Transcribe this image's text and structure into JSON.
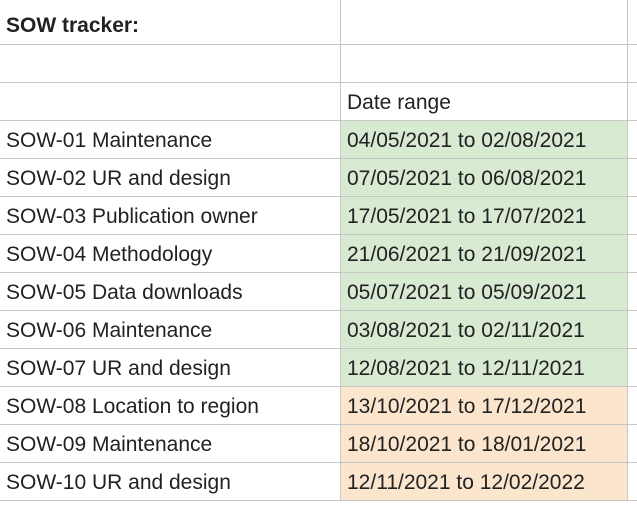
{
  "sheet": {
    "title": "SOW tracker:",
    "header": {
      "col_a": "",
      "col_b": "Date range"
    },
    "rows": [
      {
        "name": "SOW-01 Maintenance",
        "range": "04/05/2021 to 02/08/2021",
        "status_color": "#d9ead3"
      },
      {
        "name": "SOW-02 UR and design",
        "range": "07/05/2021 to 06/08/2021",
        "status_color": "#d9ead3"
      },
      {
        "name": "SOW-03 Publication owner",
        "range": "17/05/2021 to 17/07/2021",
        "status_color": "#d9ead3"
      },
      {
        "name": "SOW-04 Methodology",
        "range": "21/06/2021 to 21/09/2021",
        "status_color": "#d9ead3"
      },
      {
        "name": "SOW-05 Data downloads",
        "range": "05/07/2021 to 05/09/2021",
        "status_color": "#d9ead3"
      },
      {
        "name": "SOW-06 Maintenance",
        "range": "03/08/2021 to 02/11/2021",
        "status_color": "#d9ead3"
      },
      {
        "name": "SOW-07 UR and design",
        "range": "12/08/2021 to 12/11/2021",
        "status_color": "#d9ead3"
      },
      {
        "name": "SOW-08 Location to region",
        "range": "13/10/2021 to 17/12/2021",
        "status_color": "#fce5cd"
      },
      {
        "name": "SOW-09 Maintenance",
        "range": "18/10/2021 to 18/01/2021",
        "status_color": "#fce5cd"
      },
      {
        "name": "SOW-10 UR and design",
        "range": "12/11/2021 to 12/02/2022",
        "status_color": "#fce5cd"
      }
    ],
    "colors": {
      "green": "#d9ead3",
      "peach": "#fce5cd",
      "gridline": "#c6c6c6"
    }
  }
}
